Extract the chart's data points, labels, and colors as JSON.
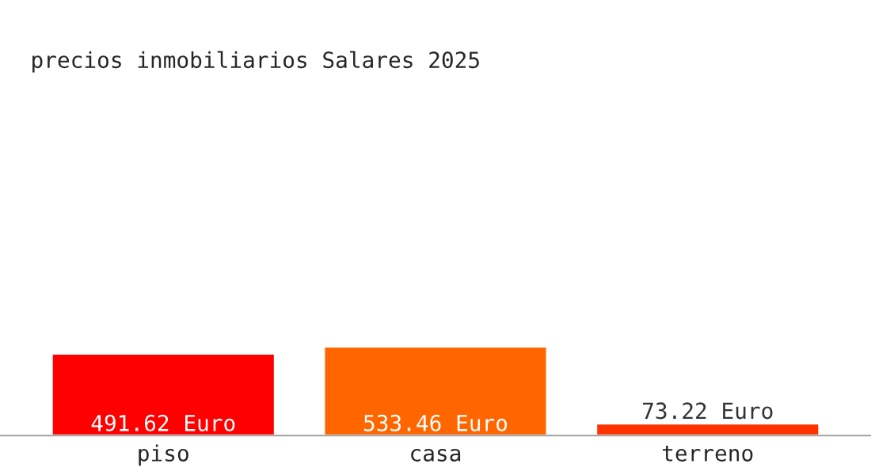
{
  "chart_data": {
    "type": "bar",
    "title": "precios inmobiliarios Salares 2025",
    "categories": [
      "piso",
      "casa",
      "terreno"
    ],
    "values": [
      491.62,
      533.46,
      73.22
    ],
    "value_labels": [
      "491.62 Euro",
      "533.46 Euro",
      "73.22 Euro"
    ],
    "colors": [
      "#ff0000",
      "#ff6600",
      "#ff3300"
    ],
    "grid": false,
    "legend": false
  }
}
